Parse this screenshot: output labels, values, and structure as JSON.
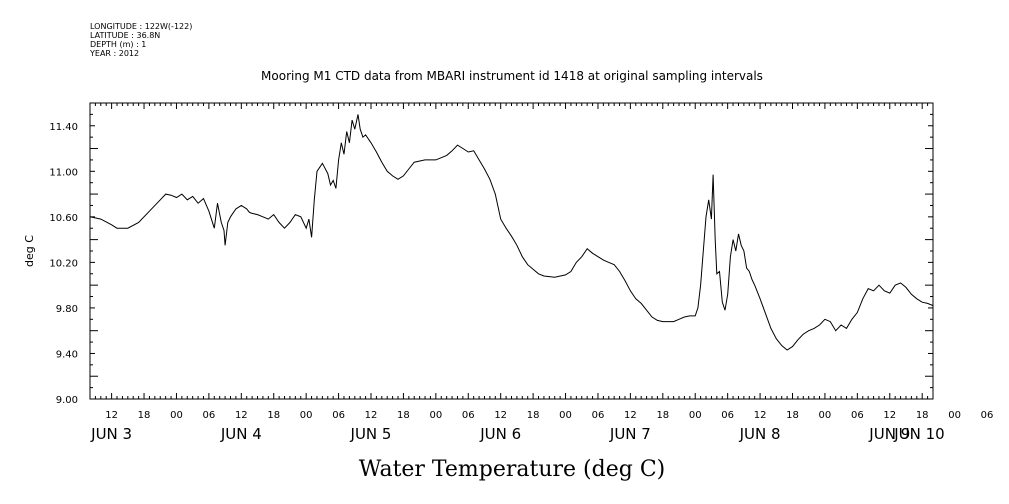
{
  "meta": {
    "longitude": "LONGITUDE : 122W(-122)",
    "latitude": "LATITUDE : 36.8N",
    "depth": "DEPTH (m) : 1",
    "year": "YEAR : 2012"
  },
  "chart_data": {
    "type": "line",
    "title": "Mooring M1 CTD data from MBARI instrument id 1418 at original sampling intervals",
    "xlabel": "Water Temperature (deg C)",
    "ylabel": "deg C",
    "ylim": [
      9.0,
      11.6
    ],
    "yticks": [
      "9.00",
      "9.40",
      "9.80",
      "10.20",
      "10.60",
      "11.00",
      "11.40"
    ],
    "x_hour_ticks": [
      "12",
      "18",
      "00",
      "06",
      "12",
      "18",
      "00",
      "06",
      "12",
      "18",
      "00",
      "06",
      "12",
      "18",
      "00",
      "06",
      "12",
      "18",
      "00",
      "06",
      "12",
      "18",
      "00",
      "06",
      "12",
      "18",
      "00",
      "06",
      "12",
      "18",
      "00",
      "06"
    ],
    "x_day_labels": [
      "JUN 3",
      "JUN 4",
      "JUN 5",
      "JUN 6",
      "JUN 7",
      "JUN 8",
      "JUN 9",
      "JUN 10"
    ],
    "x_unit": "hours since 2012-06-03 00:00",
    "xlim": [
      8,
      164
    ],
    "grid": false,
    "series": [
      {
        "color": "#000000",
        "points": [
          [
            8,
            10.6
          ],
          [
            10,
            10.58
          ],
          [
            12,
            10.53
          ],
          [
            13,
            10.5
          ],
          [
            15,
            10.5
          ],
          [
            17,
            10.55
          ],
          [
            19,
            10.65
          ],
          [
            21,
            10.75
          ],
          [
            22,
            10.8
          ],
          [
            23,
            10.79
          ],
          [
            24,
            10.77
          ],
          [
            25,
            10.8
          ],
          [
            26,
            10.75
          ],
          [
            27,
            10.78
          ],
          [
            28,
            10.72
          ],
          [
            29,
            10.76
          ],
          [
            30,
            10.65
          ],
          [
            31,
            10.5
          ],
          [
            31.6,
            10.72
          ],
          [
            32.3,
            10.55
          ],
          [
            32.8,
            10.48
          ],
          [
            33,
            10.35
          ],
          [
            33.5,
            10.55
          ],
          [
            34,
            10.6
          ],
          [
            35,
            10.67
          ],
          [
            36,
            10.7
          ],
          [
            37,
            10.67
          ],
          [
            38,
            10.63
          ],
          [
            39,
            10.62
          ],
          [
            40,
            10.6
          ],
          [
            41,
            10.58
          ],
          [
            42,
            10.62
          ],
          [
            43,
            10.55
          ],
          [
            44,
            10.5
          ],
          [
            45,
            10.55
          ],
          [
            46,
            10.62
          ],
          [
            47,
            10.6
          ],
          [
            48,
            10.5
          ],
          [
            48.5,
            10.58
          ],
          [
            49,
            10.42
          ],
          [
            49.5,
            10.75
          ],
          [
            50,
            11.0
          ],
          [
            51,
            11.07
          ],
          [
            52,
            10.98
          ],
          [
            52.5,
            10.88
          ],
          [
            53,
            10.92
          ],
          [
            53.5,
            10.85
          ],
          [
            54,
            11.1
          ],
          [
            54.5,
            11.25
          ],
          [
            55,
            11.15
          ],
          [
            55.5,
            11.35
          ],
          [
            56,
            11.25
          ],
          [
            56.5,
            11.45
          ],
          [
            57,
            11.37
          ],
          [
            37.5,
            10.64
          ],
          [
            57.6,
            11.5
          ],
          [
            58,
            11.37
          ],
          [
            58.5,
            11.3
          ],
          [
            59,
            11.32
          ],
          [
            60,
            11.25
          ],
          [
            61,
            11.17
          ],
          [
            62,
            11.08
          ],
          [
            63,
            11.0
          ],
          [
            64,
            10.96
          ],
          [
            65,
            10.93
          ],
          [
            66,
            10.96
          ],
          [
            67,
            11.02
          ],
          [
            68,
            11.08
          ],
          [
            70,
            11.1
          ],
          [
            72,
            11.1
          ],
          [
            74,
            11.14
          ],
          [
            75,
            11.18
          ],
          [
            76,
            11.23
          ],
          [
            77,
            11.2
          ],
          [
            78,
            11.17
          ],
          [
            79,
            11.18
          ],
          [
            80,
            11.1
          ],
          [
            81,
            11.02
          ],
          [
            82,
            10.93
          ],
          [
            83,
            10.8
          ],
          [
            84,
            10.58
          ],
          [
            85,
            10.5
          ],
          [
            86,
            10.43
          ],
          [
            87,
            10.35
          ],
          [
            88,
            10.25
          ],
          [
            89,
            10.18
          ],
          [
            90,
            10.14
          ],
          [
            91,
            10.1
          ],
          [
            92,
            10.08
          ],
          [
            94,
            10.07
          ],
          [
            96,
            10.09
          ],
          [
            97,
            10.12
          ],
          [
            98,
            10.2
          ],
          [
            99,
            10.25
          ],
          [
            100,
            10.32
          ],
          [
            101,
            10.28
          ],
          [
            102,
            10.25
          ],
          [
            103,
            10.22
          ],
          [
            104,
            10.2
          ],
          [
            105,
            10.18
          ],
          [
            106,
            10.12
          ],
          [
            107,
            10.04
          ],
          [
            108,
            9.95
          ],
          [
            109,
            9.88
          ],
          [
            110,
            9.84
          ],
          [
            111,
            9.78
          ],
          [
            112,
            9.72
          ],
          [
            113,
            9.69
          ],
          [
            114,
            9.68
          ],
          [
            116,
            9.68
          ],
          [
            117,
            9.7
          ],
          [
            118,
            9.72
          ],
          [
            119,
            9.73
          ],
          [
            120,
            9.73
          ],
          [
            120.5,
            9.8
          ],
          [
            121,
            10.0
          ],
          [
            121.5,
            10.3
          ],
          [
            122,
            10.6
          ],
          [
            122.5,
            10.75
          ],
          [
            123,
            10.58
          ],
          [
            123.3,
            10.97
          ],
          [
            123.7,
            10.4
          ],
          [
            124,
            10.1
          ],
          [
            124.5,
            10.12
          ],
          [
            125,
            9.85
          ],
          [
            125.5,
            9.78
          ],
          [
            126,
            9.92
          ],
          [
            126.5,
            10.25
          ],
          [
            127,
            10.4
          ],
          [
            127.5,
            10.3
          ],
          [
            128,
            10.45
          ],
          [
            128.5,
            10.35
          ],
          [
            129,
            10.3
          ],
          [
            129.5,
            10.15
          ],
          [
            130,
            10.12
          ],
          [
            130.5,
            10.05
          ],
          [
            131,
            10.0
          ],
          [
            132,
            9.88
          ],
          [
            133,
            9.75
          ],
          [
            134,
            9.62
          ],
          [
            135,
            9.53
          ],
          [
            136,
            9.47
          ],
          [
            137,
            9.43
          ],
          [
            138,
            9.46
          ],
          [
            139,
            9.52
          ],
          [
            140,
            9.57
          ],
          [
            141,
            9.6
          ],
          [
            142,
            9.62
          ],
          [
            143,
            9.65
          ],
          [
            144,
            9.7
          ],
          [
            145,
            9.68
          ],
          [
            146,
            9.6
          ],
          [
            147,
            9.65
          ],
          [
            148,
            9.62
          ],
          [
            149,
            9.7
          ],
          [
            150,
            9.76
          ],
          [
            151,
            9.88
          ],
          [
            152,
            9.97
          ],
          [
            153,
            9.95
          ],
          [
            154,
            10.0
          ],
          [
            155,
            9.95
          ],
          [
            156,
            9.93
          ],
          [
            157,
            10.0
          ],
          [
            158,
            10.02
          ],
          [
            159,
            9.98
          ],
          [
            160,
            9.92
          ],
          [
            161,
            9.88
          ],
          [
            162,
            9.85
          ],
          [
            163,
            9.84
          ],
          [
            164,
            9.82
          ]
        ]
      }
    ]
  }
}
